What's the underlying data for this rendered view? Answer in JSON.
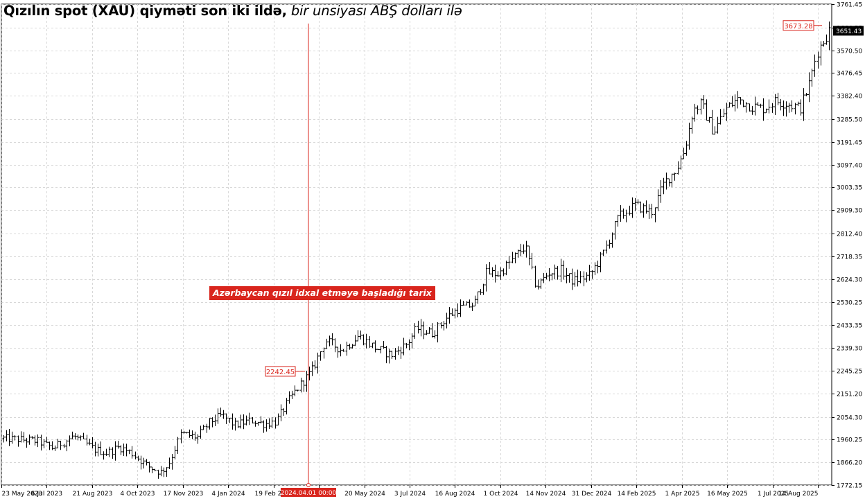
{
  "title": {
    "main": "Qızılın spot (XAU) qiyməti son iki ildə,",
    "sub": " bir unsiyası ABŞ dolları ilə"
  },
  "annotation": {
    "label": "Azərbaycan qızıl idxal etməyə başladığı tarix",
    "date_tag": "2024.04.01 00:00",
    "price_tag": "2242.45",
    "line_color": "#d9251d"
  },
  "current_price": "3651.43",
  "high_price_tag": "3673.28",
  "chart_data": {
    "type": "bar",
    "ohlc": true,
    "ylim": [
      1772.15,
      3761.45
    ],
    "y_ticks": [
      "3761.45",
      "3664.55",
      "3570.50",
      "3476.45",
      "3382.40",
      "3285.50",
      "3191.45",
      "3097.40",
      "3003.35",
      "2909.30",
      "2812.40",
      "2718.35",
      "2624.30",
      "2530.25",
      "2433.35",
      "2339.30",
      "2245.25",
      "2151.20",
      "2054.30",
      "1960.25",
      "1866.20",
      "1772.15"
    ],
    "x_ticks": [
      "23 May 2023",
      "6 Jul 2023",
      "21 Aug 2023",
      "4 Oct 2023",
      "17 Nov 2023",
      "4 Jan 2024",
      "19 Feb 2024",
      "5 Apr 2024",
      "20 May 2024",
      "3 Jul 2024",
      "16 Aug 2024",
      "1 Oct 2024",
      "14 Nov 2024",
      "31 Dec 2024",
      "14 Feb 2025",
      "1 Apr 2025",
      "16 May 2025",
      "1 Jul 2025",
      "14 Aug 2025"
    ],
    "anchors": [
      {
        "t": 0,
        "p": 1965
      },
      {
        "t": 0.04,
        "p": 1955
      },
      {
        "t": 0.06,
        "p": 1925
      },
      {
        "t": 0.085,
        "p": 1975
      },
      {
        "t": 0.11,
        "p": 1920
      },
      {
        "t": 0.125,
        "p": 1905
      },
      {
        "t": 0.14,
        "p": 1930
      },
      {
        "t": 0.155,
        "p": 1905
      },
      {
        "t": 0.175,
        "p": 1850
      },
      {
        "t": 0.19,
        "p": 1825
      },
      {
        "t": 0.2,
        "p": 1860
      },
      {
        "t": 0.215,
        "p": 1985
      },
      {
        "t": 0.235,
        "p": 1970
      },
      {
        "t": 0.25,
        "p": 2035
      },
      {
        "t": 0.265,
        "p": 2060
      },
      {
        "t": 0.28,
        "p": 2020
      },
      {
        "t": 0.3,
        "p": 2040
      },
      {
        "t": 0.315,
        "p": 2025
      },
      {
        "t": 0.33,
        "p": 2035
      },
      {
        "t": 0.345,
        "p": 2120
      },
      {
        "t": 0.36,
        "p": 2190
      },
      {
        "t": 0.373,
        "p": 2242
      },
      {
        "t": 0.39,
        "p": 2370
      },
      {
        "t": 0.41,
        "p": 2330
      },
      {
        "t": 0.43,
        "p": 2390
      },
      {
        "t": 0.45,
        "p": 2340
      },
      {
        "t": 0.47,
        "p": 2310
      },
      {
        "t": 0.49,
        "p": 2360
      },
      {
        "t": 0.5,
        "p": 2420
      },
      {
        "t": 0.52,
        "p": 2400
      },
      {
        "t": 0.535,
        "p": 2460
      },
      {
        "t": 0.55,
        "p": 2500
      },
      {
        "t": 0.57,
        "p": 2520
      },
      {
        "t": 0.585,
        "p": 2650
      },
      {
        "t": 0.6,
        "p": 2645
      },
      {
        "t": 0.62,
        "p": 2720
      },
      {
        "t": 0.632,
        "p": 2760
      },
      {
        "t": 0.645,
        "p": 2590
      },
      {
        "t": 0.66,
        "p": 2650
      },
      {
        "t": 0.675,
        "p": 2660
      },
      {
        "t": 0.69,
        "p": 2615
      },
      {
        "t": 0.71,
        "p": 2640
      },
      {
        "t": 0.725,
        "p": 2720
      },
      {
        "t": 0.745,
        "p": 2880
      },
      {
        "t": 0.765,
        "p": 2930
      },
      {
        "t": 0.785,
        "p": 2900
      },
      {
        "t": 0.8,
        "p": 3020
      },
      {
        "t": 0.815,
        "p": 3080
      },
      {
        "t": 0.825,
        "p": 3160
      },
      {
        "t": 0.835,
        "p": 3320
      },
      {
        "t": 0.845,
        "p": 3350
      },
      {
        "t": 0.86,
        "p": 3230
      },
      {
        "t": 0.875,
        "p": 3330
      },
      {
        "t": 0.89,
        "p": 3370
      },
      {
        "t": 0.905,
        "p": 3340
      },
      {
        "t": 0.92,
        "p": 3330
      },
      {
        "t": 0.935,
        "p": 3360
      },
      {
        "t": 0.95,
        "p": 3350
      },
      {
        "t": 0.965,
        "p": 3330
      },
      {
        "t": 0.975,
        "p": 3420
      },
      {
        "t": 0.985,
        "p": 3560
      },
      {
        "t": 1.0,
        "p": 3651
      }
    ]
  }
}
